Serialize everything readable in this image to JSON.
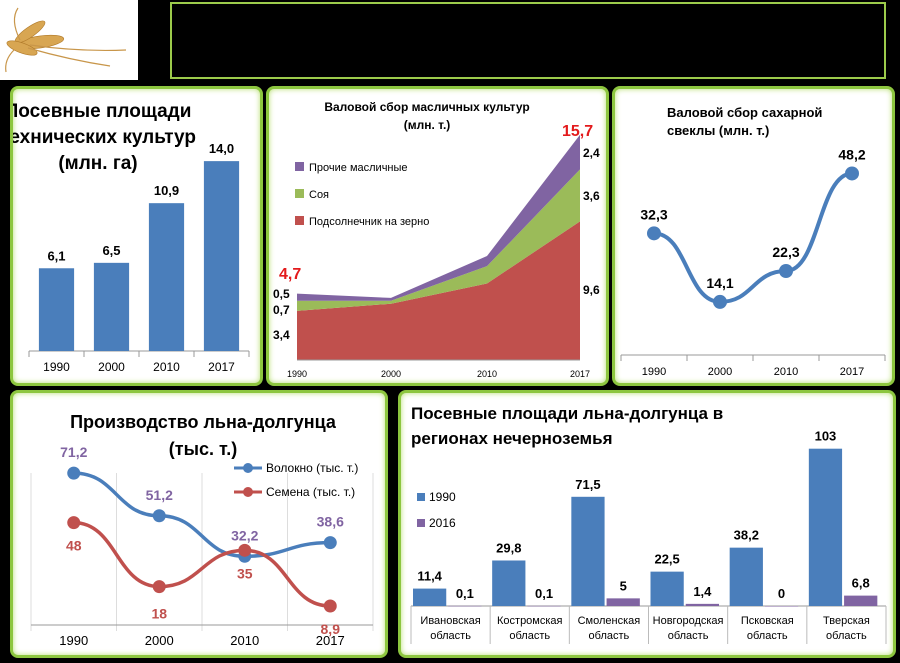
{
  "chart_data": [
    {
      "type": "bar",
      "title": "Посевные площади технических культур (млн. га)",
      "title_lines": [
        "Посевные площади",
        "технических культур",
        "(млн. га)"
      ],
      "categories": [
        "1990",
        "2000",
        "2010",
        "2017"
      ],
      "values": [
        6.1,
        6.5,
        10.9,
        14.0
      ],
      "value_labels": [
        "6,1",
        "6,5",
        "10,9",
        "14,0"
      ],
      "ylim": [
        0,
        16
      ],
      "color": "#4a7ebb"
    },
    {
      "type": "area",
      "title": "Валовой сбор масличных культур (млн. т.)",
      "title_lines": [
        "Валовой сбор масличных культур",
        "(млн. т.)"
      ],
      "x": [
        "1990",
        "2000",
        "2010",
        "2017"
      ],
      "series": [
        {
          "name": "Подсолнечник на зерно",
          "values": [
            3.4,
            3.9,
            5.3,
            9.6
          ],
          "color": "#c0504d"
        },
        {
          "name": "Соя",
          "values": [
            0.7,
            0.2,
            1.2,
            3.6
          ],
          "color": "#9bbb59"
        },
        {
          "name": "Прочие масличные",
          "values": [
            0.5,
            0.2,
            0.7,
            2.4
          ],
          "color": "#8064a2"
        }
      ],
      "legend_order": [
        "Прочие масличные",
        "Соя",
        "Подсолнечник на зерно"
      ],
      "start_labels": [
        "3,4",
        "0,7",
        "0,5"
      ],
      "end_labels": [
        "9,6",
        "3,6",
        "2,4"
      ],
      "total_start": "4,7",
      "total_end": "15,7",
      "ylim": [
        0,
        16
      ]
    },
    {
      "type": "line",
      "title": "Валовой сбор сахарной свеклы (млн. т.)",
      "title_lines": [
        "Валовой сбор сахарной",
        "свеклы (млн. т.)"
      ],
      "x": [
        "1990",
        "2000",
        "2010",
        "2017"
      ],
      "values": [
        32.3,
        14.1,
        22.3,
        48.2
      ],
      "value_labels": [
        "32,3",
        "14,1",
        "22,3",
        "48,2"
      ],
      "ylim": [
        0,
        60
      ],
      "color": "#4a7ebb"
    },
    {
      "type": "line",
      "title": "Производство льна-долгунца (тыс. т.)",
      "title_lines": [
        "Производство льна-долгунца",
        "(тыс. т.)"
      ],
      "x": [
        "1990",
        "2000",
        "2010",
        "2017"
      ],
      "series": [
        {
          "name": "Волокно (тыс. т.)",
          "values": [
            71.2,
            51.2,
            32.2,
            38.6
          ],
          "labels": [
            "71,2",
            "51,2",
            "32,2",
            "38,6"
          ],
          "color": "#4a7ebb",
          "label_color": "#8064a2"
        },
        {
          "name": "Семена (тыс. т.)",
          "values": [
            48,
            18,
            35,
            8.9
          ],
          "labels": [
            "48",
            "18",
            "35",
            "8,9"
          ],
          "color": "#c0504d",
          "label_color": "#c0504d"
        }
      ],
      "ylim": [
        0,
        90
      ]
    },
    {
      "type": "bar",
      "title": "Посевные площади льна-долгунца в регионах нечерноземья",
      "title_lines": [
        "Посевные площади льна-долгунца в",
        "регионах нечерноземья"
      ],
      "categories": [
        [
          "Ивановская",
          "область"
        ],
        [
          "Костромская",
          "область"
        ],
        [
          "Смоленская",
          "область"
        ],
        [
          "Новгородская",
          "область"
        ],
        [
          "Псковская",
          "область"
        ],
        [
          "Тверская",
          "область"
        ]
      ],
      "series": [
        {
          "name": "1990",
          "values": [
            11.4,
            29.8,
            71.5,
            22.5,
            38.2,
            103
          ],
          "labels": [
            "11,4",
            "29,8",
            "71,5",
            "22,5",
            "38,2",
            "103"
          ],
          "color": "#4a7ebb"
        },
        {
          "name": "2016",
          "values": [
            0.1,
            0.1,
            5,
            1.4,
            0,
            6.8
          ],
          "labels": [
            "0,1",
            "0,1",
            "5",
            "1,4",
            "0",
            "6,8"
          ],
          "color": "#8064a2"
        }
      ],
      "ylim": [
        0,
        110
      ]
    }
  ]
}
